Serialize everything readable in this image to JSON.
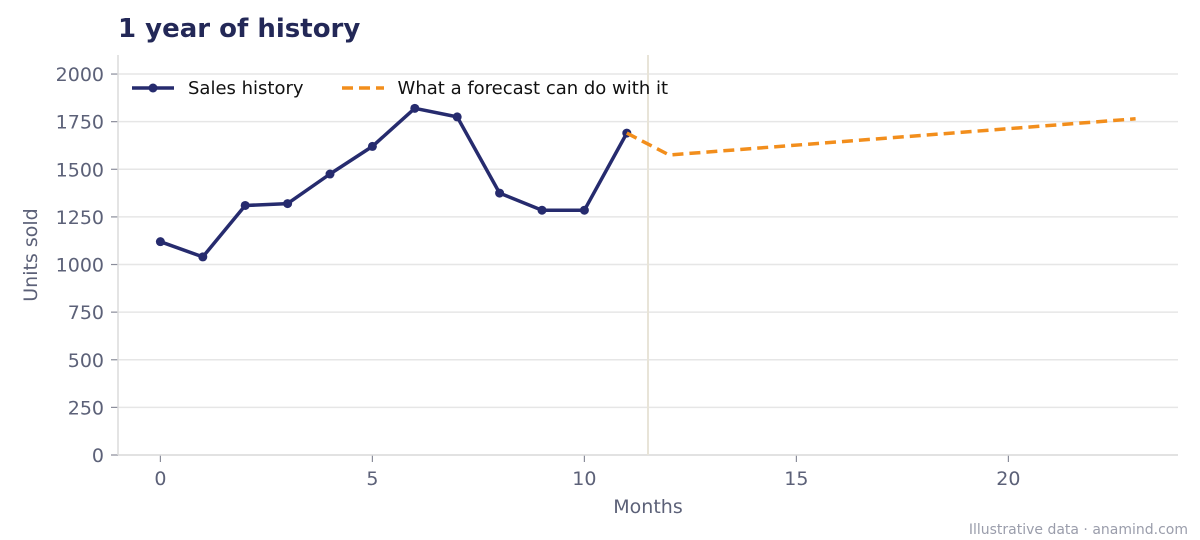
{
  "title": "1 year of history",
  "footnote": "Illustrative data · anamind.com",
  "chart_data": {
    "type": "line",
    "title": "1 year of history",
    "xlabel": "Months",
    "ylabel": "Units sold",
    "xlim": [
      -1,
      24
    ],
    "ylim": [
      0,
      2100
    ],
    "xticks": [
      0,
      5,
      10,
      15,
      20
    ],
    "yticks": [
      0,
      250,
      500,
      750,
      1000,
      1250,
      1500,
      1750,
      2000
    ],
    "grid": "horizontal",
    "legend_position": "top-left",
    "divider_x": 11.5,
    "series": [
      {
        "name": "Sales history",
        "style": "solid-markers",
        "color": "#262b6e",
        "x": [
          0,
          1,
          2,
          3,
          4,
          5,
          6,
          7,
          8,
          9,
          10,
          11
        ],
        "y": [
          1120,
          1040,
          1310,
          1320,
          1475,
          1620,
          1820,
          1775,
          1375,
          1285,
          1285,
          1690
        ]
      },
      {
        "name": "What a forecast can do with it",
        "style": "dashed",
        "color": "#f28e1c",
        "x": [
          11,
          12,
          23
        ],
        "y": [
          1690,
          1575,
          1765
        ]
      }
    ]
  }
}
